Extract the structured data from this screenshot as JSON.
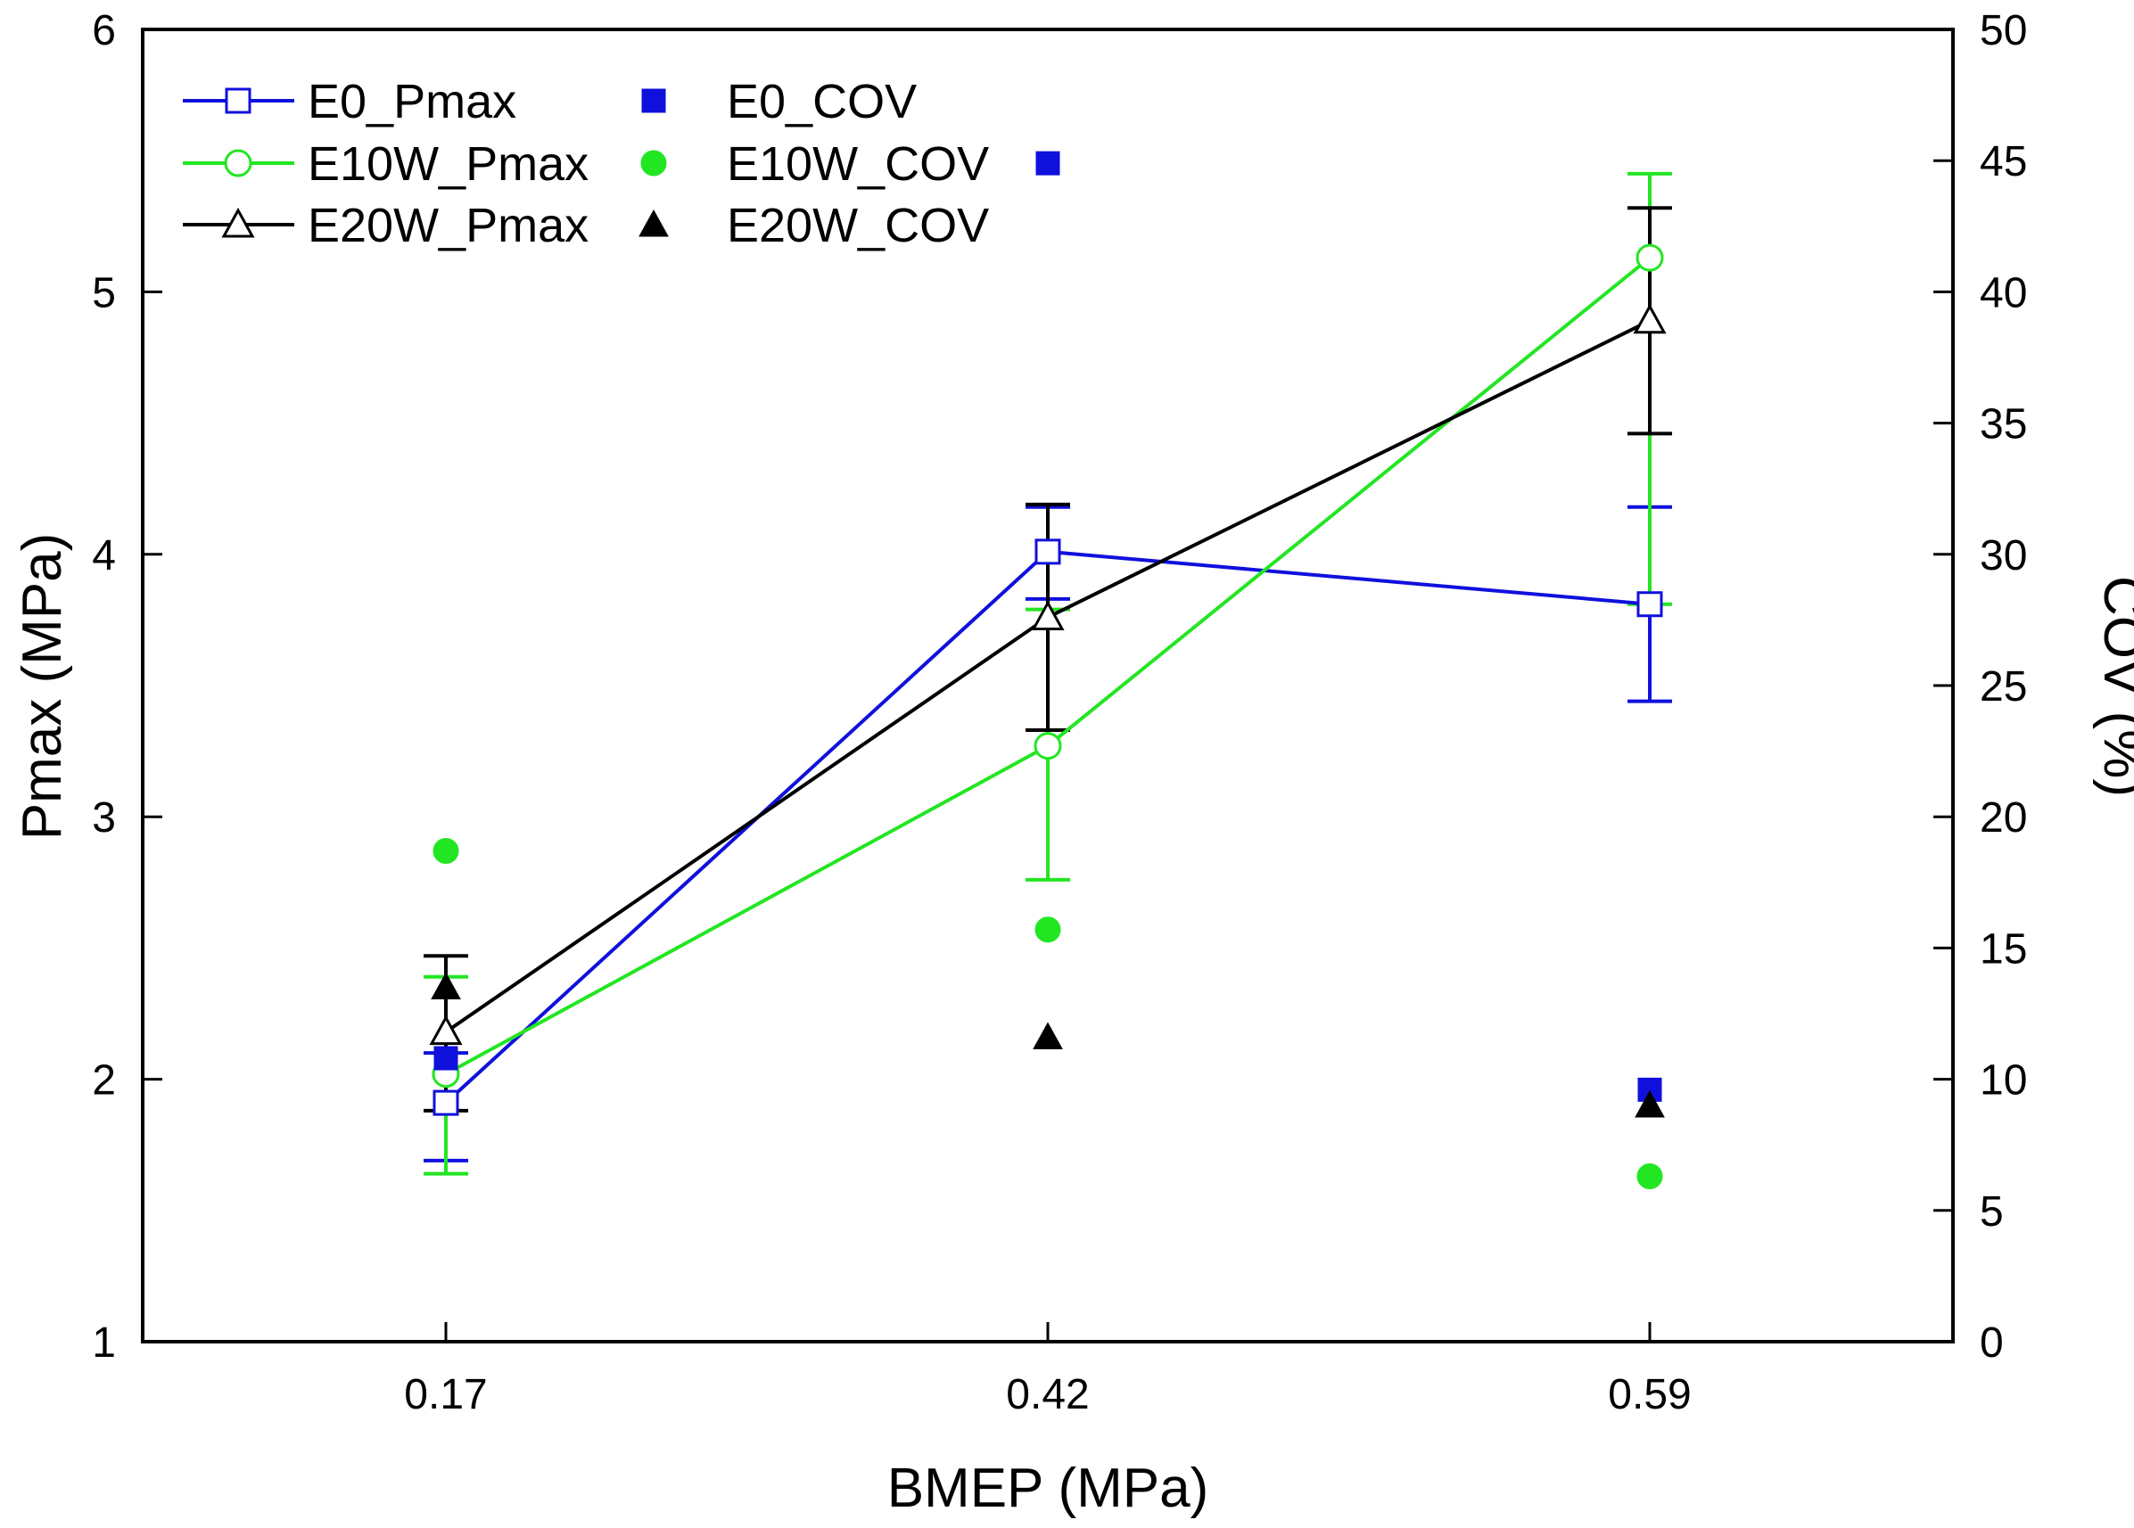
{
  "chart_data": {
    "type": "line",
    "xlabel": "BMEP (MPa)",
    "ylabel_left": "Pmax (MPa)",
    "ylabel_right": "COV (%)",
    "categories": [
      "0.17",
      "0.42",
      "0.59"
    ],
    "y_left_lim": [
      1,
      6
    ],
    "y_left_ticks": [
      "1",
      "2",
      "3",
      "4",
      "5",
      "6"
    ],
    "y_right_lim": [
      0,
      50
    ],
    "y_right_ticks": [
      "0",
      "5",
      "10",
      "15",
      "20",
      "25",
      "30",
      "35",
      "40",
      "45",
      "50"
    ],
    "grid": false,
    "legend_position": "top-left",
    "line_series": [
      {
        "name": "E0_Pmax",
        "color": "#1010dd",
        "marker": "open-square",
        "values": [
          1.91,
          4.01,
          3.81
        ],
        "error_low": [
          1.69,
          3.83,
          3.44
        ],
        "error_high": [
          2.1,
          4.18,
          4.18
        ]
      },
      {
        "name": "E10W_Pmax",
        "color": "#22e622",
        "marker": "open-circle",
        "values": [
          2.02,
          3.27,
          5.13
        ],
        "error_low": [
          1.64,
          2.76,
          3.81
        ],
        "error_high": [
          2.39,
          3.79,
          5.45
        ]
      },
      {
        "name": "E20W_Pmax",
        "color": "#000000",
        "marker": "open-triangle",
        "values": [
          2.18,
          3.76,
          4.89
        ],
        "error_low": [
          1.88,
          3.33,
          4.46
        ],
        "error_high": [
          2.47,
          4.19,
          5.32
        ]
      }
    ],
    "cov_series": [
      {
        "name": "E0_COV",
        "color": "#1010dd",
        "marker": "filled-square",
        "values": [
          10.8,
          44.9,
          9.6
        ]
      },
      {
        "name": "E10W_COV",
        "color": "#22e622",
        "marker": "filled-circle",
        "values": [
          18.7,
          15.7,
          6.3
        ]
      },
      {
        "name": "E20W_COV",
        "color": "#000000",
        "marker": "filled-triangle",
        "values": [
          13.5,
          11.6,
          9.0
        ]
      }
    ]
  }
}
